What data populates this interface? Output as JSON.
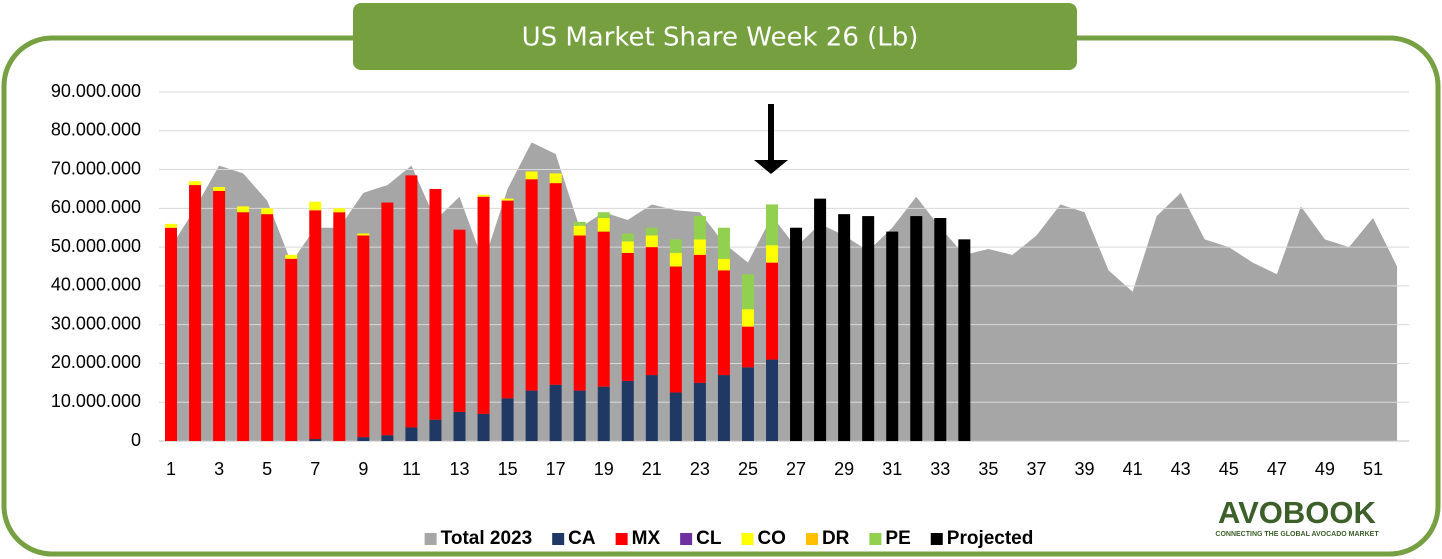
{
  "chart_data": {
    "type": "bar",
    "title": "US Market Share Week 26 (Lb)",
    "categories": [
      "1",
      null,
      "3",
      null,
      "5",
      null,
      "7",
      null,
      "9",
      null,
      "11",
      null,
      "13",
      null,
      "15",
      null,
      "17",
      null,
      "19",
      null,
      "21",
      null,
      "23",
      null,
      "25",
      null,
      "27",
      null,
      "29",
      null,
      "31",
      null,
      "33",
      null,
      "35",
      null,
      "37",
      null,
      "39",
      null,
      "41",
      null,
      "43",
      null,
      "45",
      null,
      "47",
      null,
      "49",
      null,
      "51",
      null
    ],
    "series": [
      {
        "name": "Total 2023",
        "type": "area",
        "color": "#a6a6a6",
        "values": [
          50,
          60,
          71,
          69,
          62,
          46,
          55,
          55,
          64,
          66,
          71,
          57,
          63,
          46,
          65,
          77,
          74,
          55,
          59,
          57,
          61,
          59.5,
          59,
          51,
          46,
          58,
          50,
          56,
          53,
          49,
          55,
          63,
          55,
          48,
          49.5,
          48,
          53,
          61,
          59,
          44,
          38.5,
          58,
          64,
          52,
          50,
          46,
          43,
          60.5,
          52,
          50,
          57.5,
          45
        ]
      },
      {
        "name": "CA",
        "type": "bar",
        "color": "#203864",
        "values": [
          0,
          0,
          0,
          0,
          0,
          0,
          0.5,
          0,
          1,
          1.5,
          3.5,
          5.5,
          7.5,
          7,
          11,
          13,
          14.5,
          13,
          14,
          15.5,
          17,
          12.5,
          15,
          17,
          19,
          21,
          null,
          null,
          null,
          null,
          null,
          null,
          null,
          null,
          null,
          null,
          null,
          null,
          null,
          null,
          null,
          null,
          null,
          null,
          null,
          null,
          null,
          null,
          null,
          null,
          null,
          null
        ]
      },
      {
        "name": "MX",
        "type": "bar",
        "color": "#ff0000",
        "values": [
          55,
          66,
          64.5,
          59,
          58.5,
          47,
          59,
          59,
          52,
          60,
          65,
          59.5,
          47,
          56,
          51,
          54.5,
          52,
          40,
          40,
          33,
          33,
          32.5,
          33,
          27,
          10.5,
          25,
          null,
          null,
          null,
          null,
          null,
          null,
          null,
          null,
          null,
          null,
          null,
          null,
          null,
          null,
          null,
          null,
          null,
          null,
          null,
          null,
          null,
          null,
          null,
          null,
          null,
          null
        ]
      },
      {
        "name": "CL",
        "type": "bar",
        "color": "#7030a0",
        "values": [
          0,
          0,
          0,
          0,
          0,
          0,
          0,
          0,
          0,
          0,
          0,
          0,
          0,
          0,
          0,
          0,
          0,
          0,
          0,
          0,
          0,
          0,
          0,
          0,
          0,
          0,
          null,
          null,
          null,
          null,
          null,
          null,
          null,
          null,
          null,
          null,
          null,
          null,
          null,
          null,
          null,
          null,
          null,
          null,
          null,
          null,
          null,
          null,
          null,
          null,
          null,
          null
        ]
      },
      {
        "name": "CO",
        "type": "bar",
        "color": "#ffff00",
        "values": [
          1,
          1,
          1,
          1.5,
          1.5,
          1,
          2.2,
          1,
          0.5,
          0,
          0,
          0,
          0,
          0.5,
          0.5,
          2,
          2.5,
          2.5,
          3.5,
          3,
          3,
          3.5,
          4,
          3,
          4.5,
          4.5,
          null,
          null,
          null,
          null,
          null,
          null,
          null,
          null,
          null,
          null,
          null,
          null,
          null,
          null,
          null,
          null,
          null,
          null,
          null,
          null,
          null,
          null,
          null,
          null,
          null,
          null
        ]
      },
      {
        "name": "DR",
        "type": "bar",
        "color": "#ffc000",
        "values": [
          0,
          0,
          0,
          0,
          0,
          0,
          0,
          0,
          0,
          0,
          0,
          0,
          0,
          0,
          0,
          0,
          0,
          0,
          0,
          0,
          0,
          0,
          0,
          0,
          0,
          0,
          null,
          null,
          null,
          null,
          null,
          null,
          null,
          null,
          null,
          null,
          null,
          null,
          null,
          null,
          null,
          null,
          null,
          null,
          null,
          null,
          null,
          null,
          null,
          null,
          null,
          null
        ]
      },
      {
        "name": "PE",
        "type": "bar",
        "color": "#92d050",
        "values": [
          0,
          0,
          0,
          0,
          0,
          0,
          0,
          0,
          0,
          0,
          0,
          0,
          0,
          0,
          0,
          0,
          0,
          1,
          1.5,
          2,
          2,
          3.5,
          6,
          8,
          9,
          10.5,
          null,
          null,
          null,
          null,
          null,
          null,
          null,
          null,
          null,
          null,
          null,
          null,
          null,
          null,
          null,
          null,
          null,
          null,
          null,
          null,
          null,
          null,
          null,
          null,
          null,
          null
        ]
      },
      {
        "name": "Projected",
        "type": "bar",
        "color": "#000000",
        "values": [
          null,
          null,
          null,
          null,
          null,
          null,
          null,
          null,
          null,
          null,
          null,
          null,
          null,
          null,
          null,
          null,
          null,
          null,
          null,
          null,
          null,
          null,
          null,
          null,
          null,
          null,
          55,
          62.5,
          58.5,
          58,
          54,
          58,
          57.5,
          52,
          null,
          null,
          null,
          null,
          null,
          null,
          null,
          null,
          null,
          null,
          null,
          null,
          null,
          null,
          null,
          null,
          null,
          null
        ]
      }
    ],
    "ylim": [
      0,
      90000000
    ],
    "value_unit": 1000000,
    "yticks": [
      0,
      {
        "value": 10000000,
        "label": "10.000.000"
      },
      {
        "value": 20000000,
        "label": "20.000.000"
      },
      {
        "value": 30000000,
        "label": "30.000.000"
      },
      {
        "value": 40000000,
        "label": "40.000.000"
      },
      {
        "value": 50000000,
        "label": "50.000.000"
      },
      {
        "value": 60000000,
        "label": "60.000.000"
      },
      {
        "value": 70000000,
        "label": "70.000.000"
      },
      {
        "value": 80000000,
        "label": "80.000.000"
      },
      {
        "value": 90000000,
        "label": "90.000.000"
      }
    ],
    "grid": true,
    "legend": "bottom"
  },
  "logo": {
    "name": "AVOBOOK",
    "tagline": "CONNECTING THE GLOBAL AVOCADO MARKET"
  }
}
